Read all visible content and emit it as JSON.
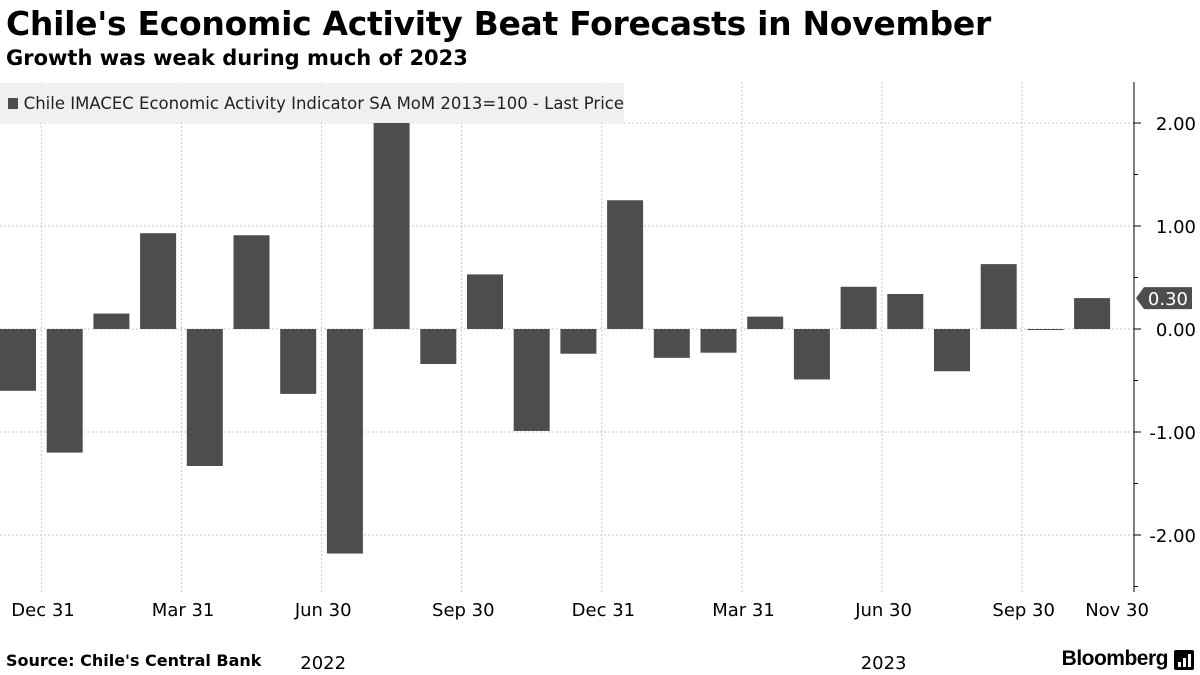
{
  "header": {
    "title": "Chile's Economic Activity Beat Forecasts in November",
    "subtitle": "Growth was weak during much of 2023"
  },
  "legend": {
    "label": "Chile IMACEC Economic Activity Indicator SA MoM 2013=100 - Last Price"
  },
  "footer": {
    "source": "Source: Chile's Central Bank",
    "brand": "Bloomberg"
  },
  "colors": {
    "bar": "#4d4d4d",
    "grid": "#c8c8c8",
    "axis": "#000000",
    "label_box": "#4d4d4d"
  },
  "chart_data": {
    "type": "bar",
    "series": [
      {
        "name": "Chile IMACEC Economic Activity Indicator SA MoM 2013=100 - Last Price",
        "months": [
          "2021-12",
          "2022-01",
          "2022-02",
          "2022-03",
          "2022-04",
          "2022-05",
          "2022-06",
          "2022-07",
          "2022-08",
          "2022-09",
          "2022-10",
          "2022-11",
          "2022-12",
          "2023-01",
          "2023-02",
          "2023-03",
          "2023-04",
          "2023-05",
          "2023-06",
          "2023-07",
          "2023-08",
          "2023-09",
          "2023-10",
          "2023-11"
        ],
        "values": [
          -0.6,
          -1.2,
          0.15,
          0.93,
          -1.33,
          0.91,
          -0.63,
          -2.18,
          2.01,
          -0.34,
          0.53,
          -0.99,
          -0.24,
          1.25,
          -0.28,
          -0.23,
          0.12,
          -0.49,
          0.41,
          0.34,
          -0.41,
          0.63,
          -0.01,
          0.3
        ]
      }
    ],
    "y_axis": {
      "position": "right",
      "ticks": [
        2.0,
        1.0,
        0.0,
        -1.0,
        -2.0
      ],
      "tick_labels": [
        "2.00",
        "1.00",
        "0.00",
        "-1.00",
        "-2.00"
      ],
      "range": [
        -2.5,
        2.4
      ]
    },
    "x_axis": {
      "tick_labels": [
        {
          "label": "Dec 31",
          "index": 0
        },
        {
          "label": "Mar 31",
          "index": 3
        },
        {
          "label": "Jun 30",
          "index": 6
        },
        {
          "label": "Sep 30",
          "index": 9
        },
        {
          "label": "Dec 31",
          "index": 12
        },
        {
          "label": "Mar 31",
          "index": 15
        },
        {
          "label": "Jun 30",
          "index": 18
        },
        {
          "label": "Sep 30",
          "index": 21
        },
        {
          "label": "Nov 30",
          "index": 23
        }
      ],
      "year_labels": [
        {
          "label": "2022",
          "index": 6
        },
        {
          "label": "2023",
          "index": 18
        }
      ]
    },
    "last_value_label": "0.30",
    "grid": true
  }
}
